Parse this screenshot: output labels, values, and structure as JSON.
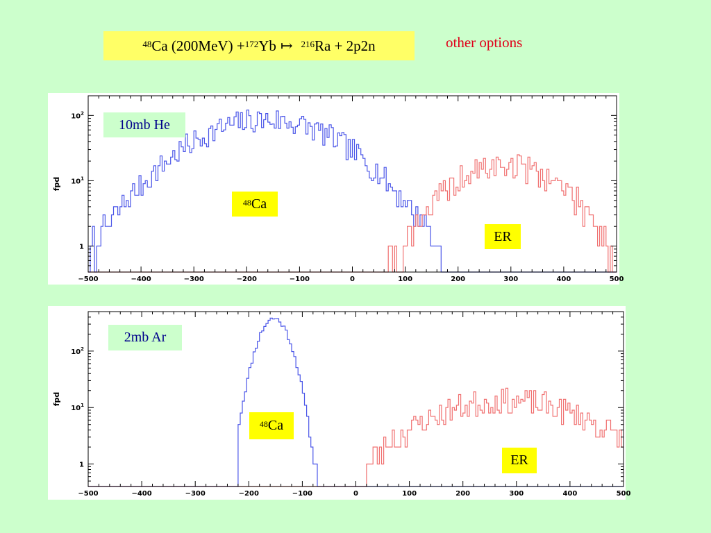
{
  "header": {
    "reaction": {
      "a1": "48",
      "p1": "Ca (200MeV) + ",
      "a2": "172",
      "p2": "Yb",
      "arrow": "↦",
      "a3": "216",
      "p3": "Ra + 2p2n"
    },
    "other_options": "other options"
  },
  "colors": {
    "background": "#ccffcc",
    "ca48": "#4a55e8",
    "er": "#f07070",
    "label_yellow": "#ffff00",
    "title_yellow": "#ffff66",
    "other_options": "#e0001a"
  },
  "chart_data": [
    {
      "type": "area",
      "title": "10mb He",
      "ylabel": "fpd",
      "xlim": [
        -500,
        500
      ],
      "ylim_log": [
        0.4,
        200
      ],
      "y_scale": "log",
      "x_ticks": [
        "−500",
        "−400",
        "−300",
        "−200",
        "−100",
        "0",
        "100",
        "200",
        "300",
        "400",
        "500"
      ],
      "y_ticks": [
        {
          "v": 1,
          "base": "1",
          "exp": ""
        },
        {
          "v": 10,
          "base": "10",
          "exp": "1"
        },
        {
          "v": 100,
          "base": "10",
          "exp": "2"
        }
      ],
      "series": [
        {
          "name": "48Ca",
          "label_mass": "48",
          "label_sym": "Ca",
          "peak": -165,
          "width": 110,
          "amp": 85,
          "xmin": -500,
          "xmax": 165,
          "noise": 0.45,
          "seed": 7,
          "color": "#4a55e8"
        },
        {
          "name": "ER",
          "label_mass": "",
          "label_sym": "ER",
          "peak": 290,
          "width": 85,
          "amp": 17,
          "xmin": 65,
          "xmax": 495,
          "noise": 0.5,
          "seed": 19,
          "color": "#f07070"
        }
      ]
    },
    {
      "type": "area",
      "title": "2mb Ar",
      "ylabel": "fpd",
      "xlim": [
        -500,
        500
      ],
      "ylim_log": [
        0.4,
        500
      ],
      "y_scale": "log",
      "x_ticks": [
        "−500",
        "−400",
        "−300",
        "−200",
        "−100",
        "0",
        "100",
        "200",
        "300",
        "400",
        "500"
      ],
      "y_ticks": [
        {
          "v": 1,
          "base": "1",
          "exp": ""
        },
        {
          "v": 10,
          "base": "10",
          "exp": "1"
        },
        {
          "v": 100,
          "base": "10",
          "exp": "2"
        }
      ],
      "series": [
        {
          "name": "48Ca",
          "label_mass": "48",
          "label_sym": "Ca",
          "peak": -155,
          "width": 22,
          "amp": 380,
          "xmin": -222,
          "xmax": -75,
          "noise": 0.12,
          "seed": 11,
          "color": "#4a55e8"
        },
        {
          "name": "ER",
          "label_mass": "",
          "label_sym": "ER",
          "peak": 280,
          "width": 120,
          "amp": 13,
          "xmin": 20,
          "xmax": 500,
          "noise": 0.55,
          "seed": 23,
          "color": "#f07070"
        }
      ]
    }
  ]
}
